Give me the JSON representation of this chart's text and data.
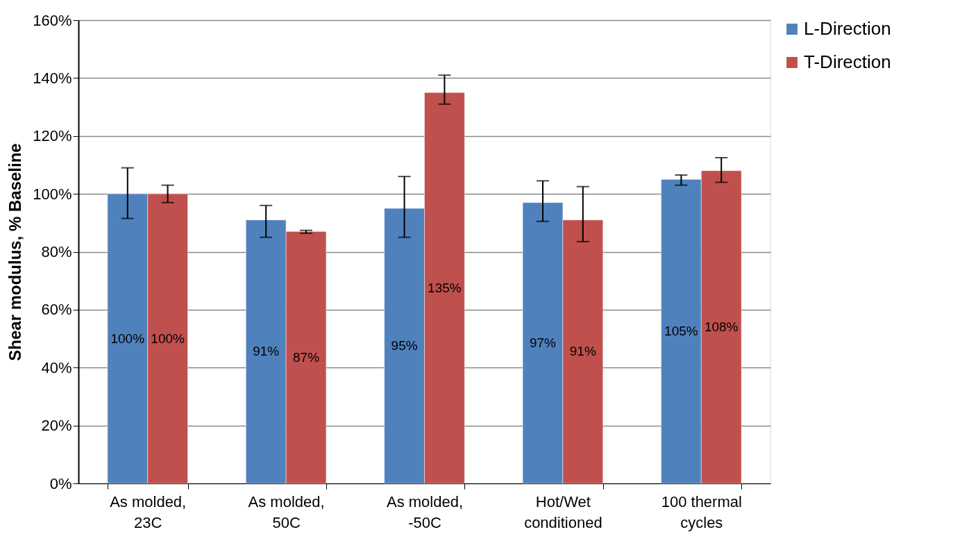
{
  "chart_data": {
    "type": "bar",
    "ylabel": "Shear modulus, % Baseline",
    "categories": [
      "As molded,\n23C",
      "As molded,\n50C",
      "As molded,\n-50C",
      "Hot/Wet\nconditioned",
      "100 thermal\ncycles"
    ],
    "series": [
      {
        "name": "L-Direction",
        "color": "#4f81bd",
        "values": [
          100,
          91,
          95,
          97,
          105
        ],
        "value_labels": [
          "100%",
          "91%",
          "95%",
          "97%",
          "105%"
        ],
        "errors": [
          [
            91.5,
            109
          ],
          [
            85,
            96
          ],
          [
            85,
            106
          ],
          [
            90.5,
            104.5
          ],
          [
            103,
            106.5
          ]
        ]
      },
      {
        "name": "T-Direction",
        "color": "#c0504d",
        "values": [
          100,
          87,
          135,
          91,
          108
        ],
        "value_labels": [
          "100%",
          "87%",
          "135%",
          "91%",
          "108%"
        ],
        "errors": [
          [
            97,
            103
          ],
          [
            86.4,
            87.4
          ],
          [
            131,
            141
          ],
          [
            83.5,
            102.5
          ],
          [
            104,
            112.5
          ]
        ]
      }
    ],
    "ylim": [
      0,
      160
    ],
    "yticks": [
      {
        "value": 0,
        "label": "0%"
      },
      {
        "value": 20,
        "label": "20%"
      },
      {
        "value": 40,
        "label": "40%"
      },
      {
        "value": 60,
        "label": "60%"
      },
      {
        "value": 80,
        "label": "80%"
      },
      {
        "value": 100,
        "label": "100%"
      },
      {
        "value": 120,
        "label": "120%"
      },
      {
        "value": 140,
        "label": "140%"
      },
      {
        "value": 160,
        "label": "160%"
      }
    ],
    "grid": "y",
    "legend": "right"
  }
}
